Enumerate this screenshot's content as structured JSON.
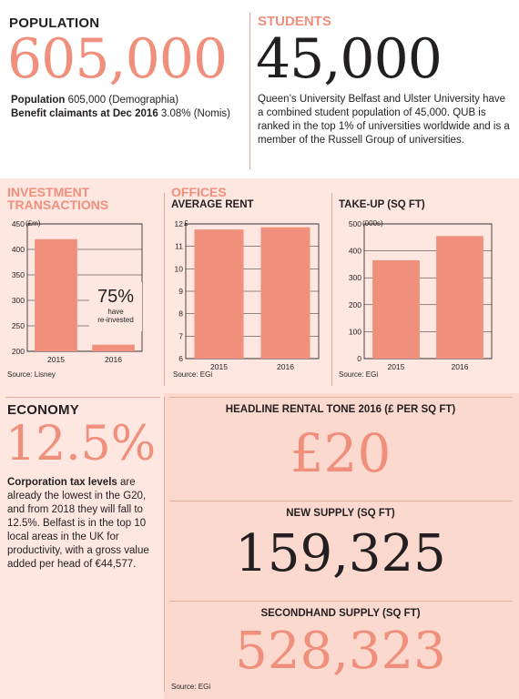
{
  "population": {
    "heading": "POPULATION",
    "big": "605,000",
    "line1_label": "Population",
    "line1_value": " 605,000 (Demographia)",
    "line2_label": "Benefit claimants at Dec 2016",
    "line2_value": " 3.08% (Nomis)"
  },
  "students": {
    "heading": "STUDENTS",
    "big": "45,000",
    "text": "Queen’s University Belfast and Ulster University have a combined student population of 45,000. QUB is ranked in the top 1% of universities worldwide and is a member of the Russell Group of universities."
  },
  "investment": {
    "heading_line1": "INVESTMENT",
    "heading_line2": "TRANSACTIONS",
    "unit": "(£m)",
    "source": "Source: Lisney",
    "annotation_big": "75%",
    "annotation_small1": "have",
    "annotation_small2": "re-invested"
  },
  "offices": {
    "heading": "OFFICES",
    "rent_title": "AVERAGE RENT",
    "rent_unit": "£",
    "rent_source": "Source: EGi",
    "takeup_title": "TAKE-UP (SQ FT)",
    "takeup_unit": "(000s)",
    "takeup_source": "Source: EGi"
  },
  "economy": {
    "heading": "ECONOMY",
    "big": "12.5%",
    "text_bold": "Corporation tax levels",
    "text": " are already the lowest in the G20, and from 2018 they will fall to 12.5%. Belfast is in the top 10 local areas in the UK for productivity, with a gross value added per head of €44,577."
  },
  "rental": {
    "title": "HEADLINE RENTAL TONE 2016 (£ PER SQ FT)",
    "value": "£20"
  },
  "new_supply": {
    "title": "NEW SUPPLY (SQ FT)",
    "value": "159,325"
  },
  "secondhand": {
    "title": "SECONDHAND SUPPLY (SQ FT)",
    "value": "528,323",
    "source": "Source: EGi"
  },
  "colors": {
    "accent": "#f08f7c",
    "bar": "#f08f7c",
    "background": "#fbd9cf"
  },
  "chart_data": [
    {
      "type": "bar",
      "title": "INVESTMENT TRANSACTIONS",
      "ylabel": "(£m)",
      "categories": [
        "2015",
        "2016"
      ],
      "values": [
        420,
        213
      ],
      "ylim": [
        200,
        450
      ],
      "yticks": [
        200,
        250,
        300,
        350,
        400,
        450
      ],
      "grid": true
    },
    {
      "type": "bar",
      "title": "AVERAGE RENT",
      "ylabel": "£",
      "categories": [
        "2015",
        "2016"
      ],
      "values": [
        11.75,
        11.85
      ],
      "ylim": [
        6,
        12
      ],
      "yticks": [
        6,
        7,
        8,
        9,
        10,
        11,
        12
      ],
      "grid": true
    },
    {
      "type": "bar",
      "title": "TAKE-UP (SQ FT)",
      "ylabel": "(000s)",
      "categories": [
        "2015",
        "2016"
      ],
      "values": [
        365,
        455
      ],
      "ylim": [
        0,
        500
      ],
      "yticks": [
        0,
        100,
        200,
        300,
        400,
        500
      ],
      "grid": true
    }
  ]
}
